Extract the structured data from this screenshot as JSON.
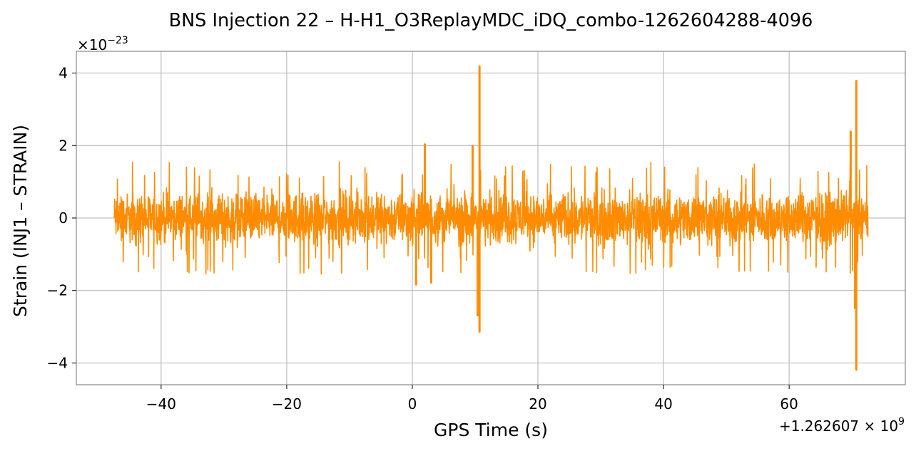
{
  "chart_data": {
    "type": "line",
    "title": "BNS Injection 22 – H-H1_O3ReplayMDC_iDQ_combo-1262604288-4096",
    "xlabel": "GPS Time (s)",
    "ylabel": "Strain (INJ1 – STRAIN)",
    "x_offset_text": "+1.262607 × 10",
    "x_offset_exponent": "9",
    "y_scale_text": "×10",
    "y_scale_exponent": "−23",
    "xlim": [
      -53.5,
      78.5
    ],
    "ylim": [
      -4.6,
      4.6
    ],
    "x_ticks": [
      -40,
      -20,
      0,
      20,
      40,
      60
    ],
    "x_tick_labels": [
      "−40",
      "−20",
      "0",
      "20",
      "40",
      "60"
    ],
    "y_ticks": [
      -4,
      -2,
      0,
      2,
      4
    ],
    "y_tick_labels": [
      "−4",
      "−2",
      "0",
      "2",
      "4"
    ],
    "grid": true,
    "series": [
      {
        "color": "#ff8c00",
        "x_start": -47.5,
        "x_end": 72.5,
        "noise_amplitude": 1.0,
        "noise_peak": 1.55,
        "features": [
          {
            "x": 2.0,
            "y": 2.05
          },
          {
            "x": 0.6,
            "y": -1.85
          },
          {
            "x": 3.0,
            "y": -1.8
          },
          {
            "x": 10.7,
            "y": 4.2
          },
          {
            "x": 10.7,
            "y": -3.15
          },
          {
            "x": 10.4,
            "y": -2.7
          },
          {
            "x": 9.6,
            "y": 2.0
          },
          {
            "x": 70.7,
            "y": 3.8
          },
          {
            "x": 70.7,
            "y": -4.2
          },
          {
            "x": 70.5,
            "y": -2.5
          },
          {
            "x": 69.8,
            "y": 2.4
          }
        ]
      }
    ]
  }
}
